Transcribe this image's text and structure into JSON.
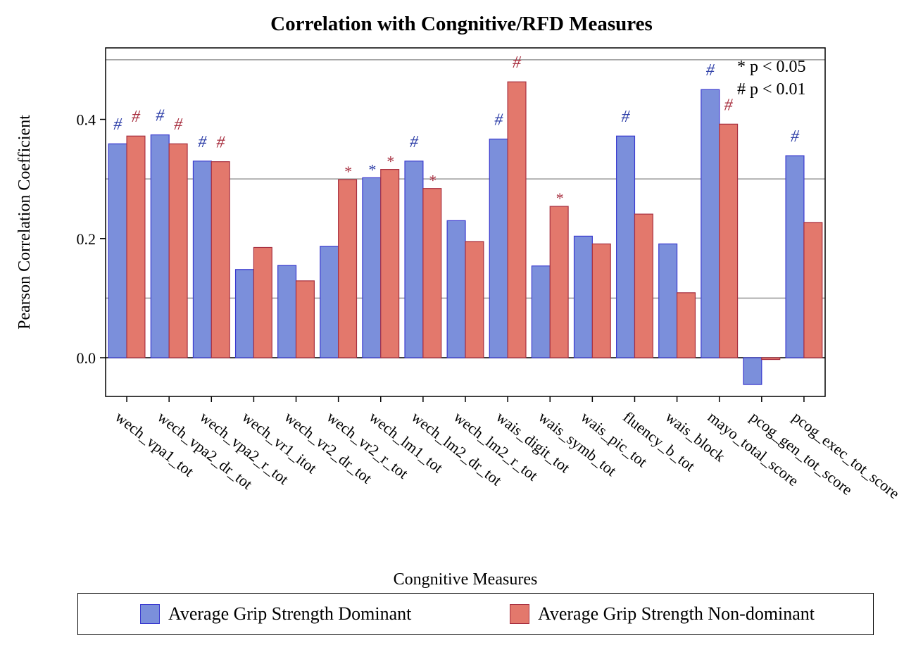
{
  "chart_data": {
    "type": "bar",
    "title": "Correlation with Congnitive/RFD Measures",
    "xlabel": "Congnitive Measures",
    "ylabel": "Pearson Correlation Coefficient",
    "ylim": [
      -0.065,
      0.52
    ],
    "yticks": [
      "0.0",
      "0.2",
      "0.4"
    ],
    "ytick_values": [
      0.0,
      0.2,
      0.4
    ],
    "gridlines": [
      0.1,
      0.3,
      0.5
    ],
    "categories": [
      "wech_vpa1_tot",
      "wech_vpa2_dr_tot",
      "wech_vpa2_r_tot",
      "wech_vr1_itot",
      "wech_vr2_dr_tot",
      "wech_vr2_r_tot",
      "wech_lm1_tot",
      "wech_lm2_dr_tot",
      "wech_lm2_r_tot",
      "wais_digit_tot",
      "wais_symb_tot",
      "wais_pic_tot",
      "fluency_b_tot",
      "wais_block",
      "mayo_total_score",
      "pcog_gen_tot_score",
      "pcog_exec_tot_score"
    ],
    "series": [
      {
        "name": "Average Grip Strength Dominant",
        "color": "#7B8FDB",
        "edge": "#3A3ACF",
        "marker_color": "#2E3FA8",
        "values": [
          0.359,
          0.374,
          0.33,
          0.148,
          0.155,
          0.187,
          0.302,
          0.33,
          0.23,
          0.367,
          0.154,
          0.204,
          0.372,
          0.191,
          0.45,
          -0.045,
          0.339
        ],
        "markers": [
          "#",
          "#",
          "#",
          "",
          "",
          "",
          "*",
          "#",
          "",
          "#",
          "",
          "",
          "#",
          "",
          "#",
          "",
          "#"
        ]
      },
      {
        "name": "Average Grip Strength Non-dominant",
        "color": "#E3786C",
        "edge": "#A83040",
        "marker_color": "#A83040",
        "values": [
          0.372,
          0.359,
          0.329,
          0.185,
          0.129,
          0.299,
          0.316,
          0.284,
          0.195,
          0.463,
          0.254,
          0.191,
          0.241,
          0.109,
          0.392,
          -0.003,
          0.227
        ],
        "markers": [
          "#",
          "#",
          "#",
          "",
          "",
          "*",
          "*",
          "*",
          "",
          "#",
          "*",
          "",
          "",
          "",
          "#",
          "",
          ""
        ]
      }
    ],
    "annotations": [
      "* p < 0.05",
      "# p < 0.01"
    ],
    "legend_position": "bottom"
  }
}
